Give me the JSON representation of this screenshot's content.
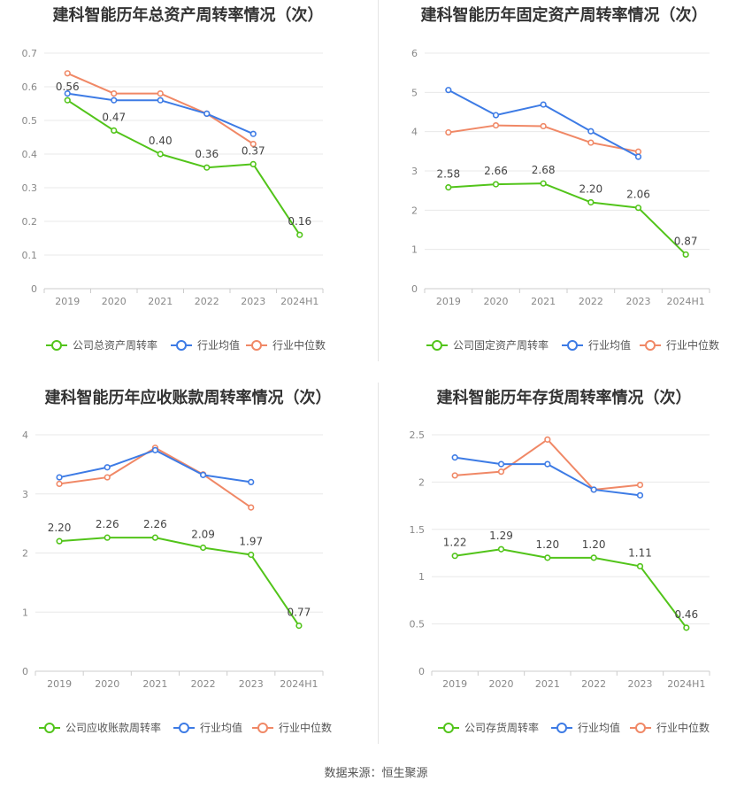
{
  "charts": [
    {
      "title": "建科智能历年总资产周转率情况（次）",
      "legend": [
        "公司总资产周转率",
        "行业均值",
        "行业中位数"
      ]
    },
    {
      "title": "建科智能历年固定资产周转率情况（次）",
      "legend": [
        "公司固定资产周转率",
        "行业均值",
        "行业中位数"
      ]
    },
    {
      "title": "建科智能历年应收账款周转率情况（次）",
      "legend": [
        "公司应收账款周转率",
        "行业均值",
        "行业中位数"
      ]
    },
    {
      "title": "建科智能历年存货周转率情况（次）",
      "legend": [
        "公司存货周转率",
        "行业均值",
        "行业中位数"
      ]
    }
  ],
  "source": "数据来源：恒生聚源",
  "colors": {
    "company": "#52c41a",
    "avg": "#3d7be5",
    "median": "#f08866",
    "grid": "#e8e8e8",
    "axis": "#cccccc",
    "tick_text": "#888888",
    "label_text": "#444444"
  },
  "chart_data": [
    {
      "type": "line",
      "title": "建科智能历年总资产周转率情况（次）",
      "categories": [
        "2019",
        "2020",
        "2021",
        "2022",
        "2023",
        "2024H1"
      ],
      "yticks": [
        "0",
        "0.1",
        "0.2",
        "0.3",
        "0.4",
        "0.5",
        "0.6",
        "0.7"
      ],
      "ylim": [
        0,
        0.7
      ],
      "grid": true,
      "legend_position": "bottom",
      "series": [
        {
          "name": "公司总资产周转率",
          "values": [
            0.56,
            0.47,
            0.4,
            0.36,
            0.37,
            0.16
          ],
          "labels": [
            "0.56",
            "0.47",
            "0.40",
            "0.36",
            "0.37",
            "0.16"
          ]
        },
        {
          "name": "行业均值",
          "values": [
            0.58,
            0.56,
            0.56,
            0.52,
            0.46,
            null
          ]
        },
        {
          "name": "行业中位数",
          "values": [
            0.64,
            0.58,
            0.58,
            0.52,
            0.43,
            null
          ]
        }
      ]
    },
    {
      "type": "line",
      "title": "建科智能历年固定资产周转率情况（次）",
      "categories": [
        "2019",
        "2020",
        "2021",
        "2022",
        "2023",
        "2024H1"
      ],
      "yticks": [
        "0",
        "1",
        "2",
        "3",
        "4",
        "5",
        "6"
      ],
      "ylim": [
        0,
        6
      ],
      "grid": true,
      "legend_position": "bottom",
      "series": [
        {
          "name": "公司固定资产周转率",
          "values": [
            2.58,
            2.66,
            2.68,
            2.2,
            2.06,
            0.87
          ],
          "labels": [
            "2.58",
            "2.66",
            "2.68",
            "2.20",
            "2.06",
            "0.87"
          ]
        },
        {
          "name": "行业均值",
          "values": [
            5.06,
            4.42,
            4.69,
            4.01,
            3.36,
            null
          ]
        },
        {
          "name": "行业中位数",
          "values": [
            3.98,
            4.16,
            4.14,
            3.72,
            3.49,
            null
          ]
        }
      ]
    },
    {
      "type": "line",
      "title": "建科智能历年应收账款周转率情况（次）",
      "categories": [
        "2019",
        "2020",
        "2021",
        "2022",
        "2023",
        "2024H1"
      ],
      "yticks": [
        "0",
        "1",
        "2",
        "3",
        "4"
      ],
      "ylim": [
        0,
        4
      ],
      "grid": true,
      "legend_position": "bottom",
      "series": [
        {
          "name": "公司应收账款周转率",
          "values": [
            2.2,
            2.26,
            2.26,
            2.09,
            1.97,
            0.77
          ],
          "labels": [
            "2.20",
            "2.26",
            "2.26",
            "2.09",
            "1.97",
            "0.77"
          ]
        },
        {
          "name": "行业均值",
          "values": [
            3.28,
            3.45,
            3.74,
            3.32,
            3.2,
            null
          ]
        },
        {
          "name": "行业中位数",
          "values": [
            3.17,
            3.28,
            3.78,
            3.33,
            2.77,
            null
          ]
        }
      ]
    },
    {
      "type": "line",
      "title": "建科智能历年存货周转率情况（次）",
      "categories": [
        "2019",
        "2020",
        "2021",
        "2022",
        "2023",
        "2024H1"
      ],
      "yticks": [
        "0",
        "0.5",
        "1",
        "1.5",
        "2",
        "2.5"
      ],
      "ylim": [
        0,
        2.5
      ],
      "grid": true,
      "legend_position": "bottom",
      "series": [
        {
          "name": "公司存货周转率",
          "values": [
            1.22,
            1.29,
            1.2,
            1.2,
            1.11,
            0.46
          ],
          "labels": [
            "1.22",
            "1.29",
            "1.20",
            "1.20",
            "1.11",
            "0.46"
          ]
        },
        {
          "name": "行业均值",
          "values": [
            2.26,
            2.19,
            2.19,
            1.92,
            1.86,
            null
          ]
        },
        {
          "name": "行业中位数",
          "values": [
            2.07,
            2.11,
            2.45,
            1.92,
            1.97,
            null
          ]
        }
      ]
    }
  ]
}
